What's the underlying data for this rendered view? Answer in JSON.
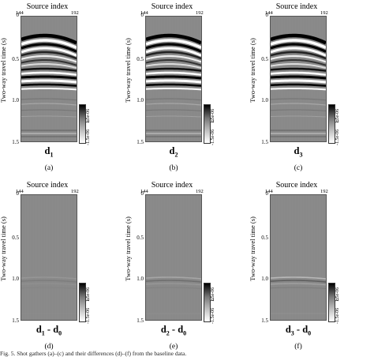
{
  "figure": {
    "panels": [
      {
        "id": "a",
        "x_axis_label": "Source index",
        "x_tick_left": "144",
        "x_tick_right": "192",
        "y_axis_label": "Two-way travel time (s)",
        "y_ticks": [
          "0",
          "0.5",
          "1.0",
          "1.5"
        ],
        "colorbar": {
          "max": "1.5e-06",
          "mid": "0",
          "min": "-1.5e-06"
        },
        "data_label_main": "d",
        "data_label_sub": "1",
        "data_label_tail": "",
        "data_label_tail_sub": "",
        "subfig_label": "(a)"
      },
      {
        "id": "b",
        "x_axis_label": "Source index",
        "x_tick_left": "144",
        "x_tick_right": "192",
        "y_axis_label": "Two-way travel time (s)",
        "y_ticks": [
          "0",
          "0.5",
          "1.0",
          "1.5"
        ],
        "colorbar": {
          "max": "1.5e-06",
          "mid": "0",
          "min": "-1.5e-06"
        },
        "data_label_main": "d",
        "data_label_sub": "2",
        "data_label_tail": "",
        "data_label_tail_sub": "",
        "subfig_label": "(b)"
      },
      {
        "id": "c",
        "x_axis_label": "Source index",
        "x_tick_left": "144",
        "x_tick_right": "192",
        "y_axis_label": "Two-way travel time (s)",
        "y_ticks": [
          "0",
          "0.5",
          "1.0",
          "1.5"
        ],
        "colorbar": {
          "max": "1.5e-06",
          "mid": "0",
          "min": "-1.5e-06"
        },
        "data_label_main": "d",
        "data_label_sub": "3",
        "data_label_tail": "",
        "data_label_tail_sub": "",
        "subfig_label": "(c)"
      },
      {
        "id": "d",
        "x_axis_label": "Source index",
        "x_tick_left": "144",
        "x_tick_right": "192",
        "y_axis_label": "Two-way travel time (s)",
        "y_ticks": [
          "0",
          "0.5",
          "1.0",
          "1.5"
        ],
        "colorbar": {
          "max": "1.5e-06",
          "mid": "0",
          "min": "-1.5e-06"
        },
        "data_label_main": "d",
        "data_label_sub": "1",
        "data_label_tail": " - d",
        "data_label_tail_sub": "0",
        "subfig_label": "(d)"
      },
      {
        "id": "e",
        "x_axis_label": "Source index",
        "x_tick_left": "144",
        "x_tick_right": "192",
        "y_axis_label": "Two-way travel time (s)",
        "y_ticks": [
          "0",
          "0.5",
          "1.0",
          "1.5"
        ],
        "colorbar": {
          "max": "1.5e-06",
          "mid": "0",
          "min": "-1.5e-06"
        },
        "data_label_main": "d",
        "data_label_sub": "2",
        "data_label_tail": " - d",
        "data_label_tail_sub": "0",
        "subfig_label": "(e)"
      },
      {
        "id": "f",
        "x_axis_label": "Source index",
        "x_tick_left": "144",
        "x_tick_right": "192",
        "y_axis_label": "Two-way travel time (s)",
        "y_ticks": [
          "0",
          "0.5",
          "1.0",
          "1.5"
        ],
        "colorbar": {
          "max": "1.5e-06",
          "mid": "0",
          "min": "-1.5e-06"
        },
        "data_label_main": "d",
        "data_label_sub": "3",
        "data_label_tail": " - d",
        "data_label_tail_sub": "0",
        "subfig_label": "(f)"
      }
    ],
    "caption_fragment": "Fig. 5. Shot gathers (a)–(c) and their differences (d)–(f) from the baseline data."
  }
}
